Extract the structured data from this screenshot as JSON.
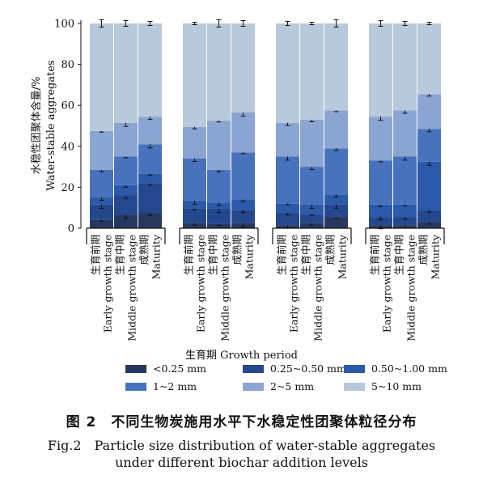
{
  "chart_data": {
    "type": "bar",
    "stacked": true,
    "ylabel_zh": "水稳性团聚体含量/%",
    "ylabel_en": "Water-stable aggregates",
    "xlabel": "生育期 Growth period",
    "ylim": [
      0,
      100
    ],
    "yticks": [
      0,
      20,
      40,
      60,
      80,
      100
    ],
    "categories": [
      {
        "zh": "生育前期",
        "en": "Early growth stage"
      },
      {
        "zh": "生育中期",
        "en": "Middle growth stage"
      },
      {
        "zh": "成熟期",
        "en": "Maturity"
      }
    ],
    "groups": [
      [
        [
          4,
          7.5,
          3.5,
          13.5,
          19,
          52.5
        ],
        [
          6.5,
          9.5,
          5,
          14,
          16.5,
          48.5
        ],
        [
          7.5,
          14.5,
          4.5,
          14.5,
          13.5,
          45.5
        ]
      ],
      [
        [
          2.5,
          7,
          4,
          20.5,
          15.5,
          50.5
        ],
        [
          2,
          7.5,
          3,
          16,
          24,
          47.5
        ],
        [
          2.5,
          6.5,
          5,
          23,
          19.5,
          43.5
        ]
      ],
      [
        [
          1.5,
          6,
          4.5,
          23,
          16.5,
          48.5
        ],
        [
          2.5,
          4.5,
          4.5,
          18.5,
          23,
          47
        ],
        [
          5.5,
          6,
          5,
          22.5,
          18.5,
          42.5
        ]
      ],
      [
        [
          1.5,
          4,
          6,
          21.5,
          21.5,
          45.5
        ],
        [
          1.5,
          4,
          6,
          23.5,
          22.5,
          42.5
        ],
        [
          3,
          5.5,
          24,
          16,
          17,
          34.5
        ]
      ]
    ],
    "series": [
      {
        "name": "<0.25 mm",
        "color": "#27385f"
      },
      {
        "name": "0.25~0.50 mm",
        "color": "#24478e"
      },
      {
        "name": "0.50~1.00 mm",
        "color": "#2b5aa8"
      },
      {
        "name": "1~2 mm",
        "color": "#4872bc"
      },
      {
        "name": "2~5 mm",
        "color": "#8ba5d2"
      },
      {
        "name": "5~10 mm",
        "color": "#b7c9da"
      }
    ],
    "legend_order": [
      0,
      1,
      2,
      3,
      4,
      5
    ],
    "grid": false,
    "legend_position": "bottom"
  },
  "caption": {
    "zh": "图 2　不同生物炭施用水平下水稳定性团聚体粒径分布",
    "en_line1": "Fig.2　Particle size distribution of water-stable aggregates",
    "en_line2": "under different biochar addition levels"
  }
}
